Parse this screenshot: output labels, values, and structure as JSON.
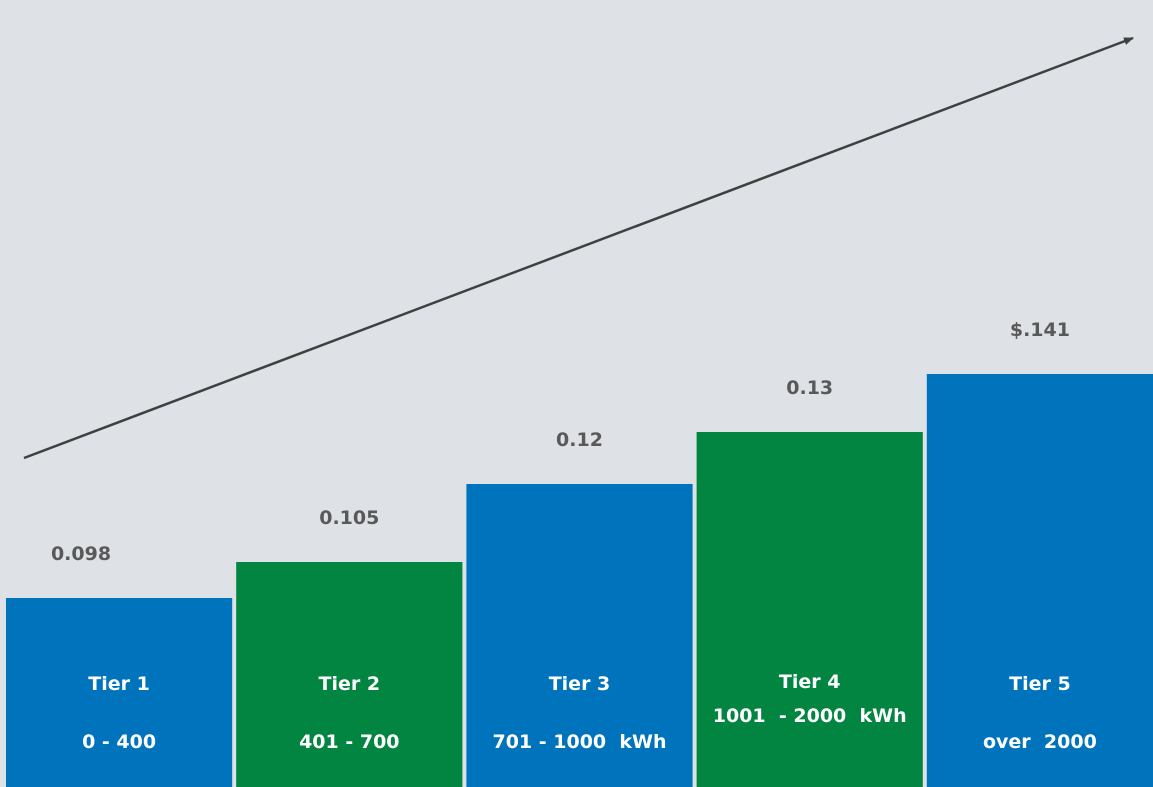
{
  "colors": {
    "background": "#ffffff",
    "plot_area": "#dee2e6",
    "tier_blue": "#0073bd",
    "tier_green": "#028541",
    "value_text": "#595959",
    "label_text": "#ffffff",
    "trend_arrow": "#404040"
  },
  "chart_data": {
    "type": "bar",
    "categories": [
      "Tier 1",
      "Tier 2",
      "Tier 3",
      "Tier 4",
      "Tier 5"
    ],
    "ranges": [
      "0 - 400",
      "401 - 700",
      "701 - 1000  kWh",
      "1001  - 2000  kWh",
      "over  2000"
    ],
    "values": [
      0.098,
      0.105,
      0.12,
      0.13,
      0.141
    ],
    "value_labels": [
      "0.098",
      "0.105",
      "0.12",
      "0.13",
      "$.141"
    ],
    "bar_colors": [
      "blue",
      "green",
      "blue",
      "green",
      "blue"
    ],
    "trend": "increasing",
    "grid": false,
    "legend": "none"
  }
}
